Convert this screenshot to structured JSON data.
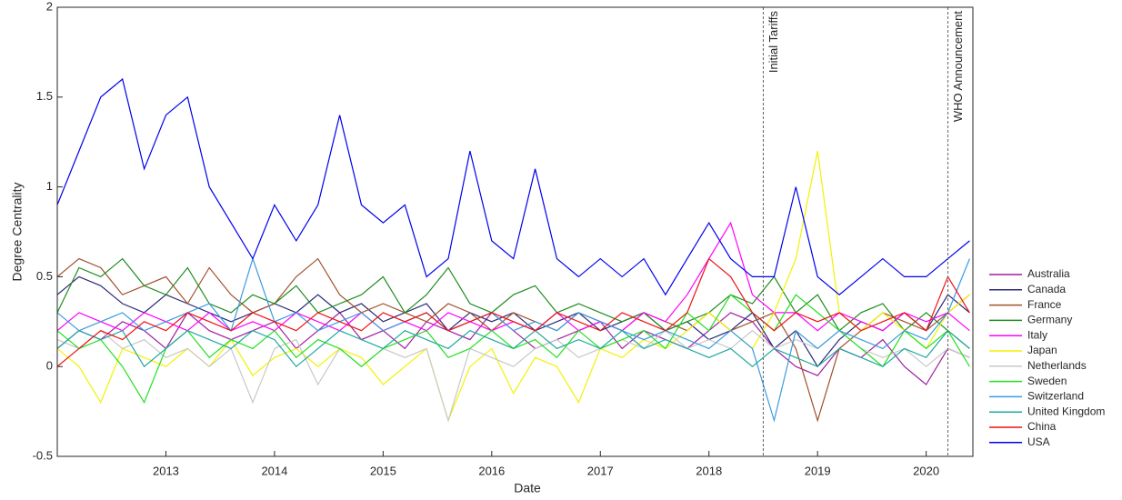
{
  "chart_data": {
    "type": "line",
    "xlabel": "Date",
    "ylabel": "Degree Centrality",
    "x": [
      2012.0,
      2012.2,
      2012.4,
      2012.6,
      2012.8,
      2013.0,
      2013.2,
      2013.4,
      2013.6,
      2013.8,
      2014.0,
      2014.2,
      2014.4,
      2014.6,
      2014.8,
      2015.0,
      2015.2,
      2015.4,
      2015.6,
      2015.8,
      2016.0,
      2016.2,
      2016.4,
      2016.6,
      2016.8,
      2017.0,
      2017.2,
      2017.4,
      2017.6,
      2017.8,
      2018.0,
      2018.2,
      2018.4,
      2018.6,
      2018.8,
      2019.0,
      2019.2,
      2019.4,
      2019.6,
      2019.8,
      2020.0,
      2020.2,
      2020.4
    ],
    "xlim": [
      2012.0,
      2020.43
    ],
    "xticks": [
      2013,
      2014,
      2015,
      2016,
      2017,
      2018,
      2019,
      2020
    ],
    "ylim": [
      -0.5,
      2
    ],
    "yticks": [
      -0.5,
      0,
      0.5,
      1,
      1.5,
      2
    ],
    "legend": "right",
    "annotations": [
      {
        "text": "Initial Tariffs",
        "x": 2018.5
      },
      {
        "text": "WHO Announcement",
        "x": 2020.2
      }
    ],
    "series": [
      {
        "name": "Australia",
        "color": "#a01fa0",
        "values": [
          0.1,
          0.2,
          0.15,
          0.25,
          0.2,
          0.1,
          0.3,
          0.2,
          0.15,
          0.2,
          0.25,
          0.1,
          0.2,
          0.3,
          0.15,
          0.2,
          0.1,
          0.25,
          0.2,
          0.15,
          0.3,
          0.2,
          0.1,
          0.15,
          0.2,
          0.25,
          0.1,
          0.2,
          0.15,
          0.1,
          0.2,
          0.3,
          0.25,
          0.1,
          0.0,
          -0.05,
          0.1,
          0.05,
          0.15,
          0.0,
          -0.1,
          0.1,
          0.05
        ]
      },
      {
        "name": "Canada",
        "color": "#2b2b7a",
        "values": [
          0.4,
          0.5,
          0.45,
          0.35,
          0.3,
          0.4,
          0.35,
          0.3,
          0.25,
          0.3,
          0.35,
          0.3,
          0.4,
          0.3,
          0.35,
          0.25,
          0.3,
          0.35,
          0.2,
          0.3,
          0.25,
          0.3,
          0.2,
          0.25,
          0.3,
          0.2,
          0.25,
          0.3,
          0.2,
          0.25,
          0.15,
          0.2,
          0.3,
          0.1,
          0.2,
          0.0,
          0.15,
          0.25,
          0.2,
          0.3,
          0.2,
          0.4,
          0.3
        ]
      },
      {
        "name": "France",
        "color": "#a0522d",
        "values": [
          0.5,
          0.6,
          0.55,
          0.4,
          0.45,
          0.5,
          0.35,
          0.55,
          0.4,
          0.3,
          0.35,
          0.5,
          0.6,
          0.4,
          0.3,
          0.35,
          0.3,
          0.25,
          0.35,
          0.3,
          0.2,
          0.3,
          0.25,
          0.2,
          0.3,
          0.25,
          0.2,
          0.3,
          0.25,
          0.2,
          0.3,
          0.2,
          0.25,
          0.3,
          0.1,
          -0.3,
          0.1,
          0.2,
          0.3,
          0.25,
          0.2,
          0.3,
          0.4
        ]
      },
      {
        "name": "Germany",
        "color": "#1f8b1f",
        "values": [
          0.3,
          0.55,
          0.5,
          0.6,
          0.45,
          0.4,
          0.55,
          0.35,
          0.3,
          0.4,
          0.35,
          0.45,
          0.3,
          0.35,
          0.4,
          0.5,
          0.3,
          0.4,
          0.55,
          0.35,
          0.3,
          0.4,
          0.45,
          0.3,
          0.35,
          0.3,
          0.25,
          0.3,
          0.2,
          0.25,
          0.3,
          0.4,
          0.35,
          0.5,
          0.3,
          0.4,
          0.2,
          0.3,
          0.35,
          0.2,
          0.3,
          0.2,
          0.1
        ]
      },
      {
        "name": "Italy",
        "color": "#ff00ff",
        "values": [
          0.2,
          0.3,
          0.25,
          0.2,
          0.3,
          0.25,
          0.2,
          0.3,
          0.2,
          0.25,
          0.2,
          0.3,
          0.25,
          0.2,
          0.3,
          0.2,
          0.25,
          0.2,
          0.3,
          0.25,
          0.2,
          0.25,
          0.2,
          0.3,
          0.2,
          0.25,
          0.2,
          0.3,
          0.25,
          0.4,
          0.6,
          0.8,
          0.4,
          0.3,
          0.3,
          0.2,
          0.3,
          0.25,
          0.2,
          0.3,
          0.25,
          0.3,
          0.2
        ]
      },
      {
        "name": "Japan",
        "color": "#f2f200",
        "values": [
          0.1,
          0.0,
          -0.2,
          0.1,
          0.05,
          0.0,
          0.1,
          0.0,
          0.15,
          -0.05,
          0.05,
          0.1,
          0.0,
          0.1,
          0.05,
          -0.1,
          0.0,
          0.1,
          -0.3,
          0.0,
          0.1,
          -0.15,
          0.05,
          0.0,
          -0.2,
          0.1,
          0.05,
          0.15,
          0.1,
          0.2,
          0.3,
          0.2,
          0.1,
          0.3,
          0.6,
          1.2,
          0.3,
          0.2,
          0.3,
          0.2,
          0.1,
          0.3,
          0.4
        ]
      },
      {
        "name": "Netherlands",
        "color": "#c8c8c8",
        "values": [
          0.15,
          0.1,
          0.2,
          0.1,
          0.15,
          0.05,
          0.1,
          0.0,
          0.1,
          -0.2,
          0.1,
          0.15,
          -0.1,
          0.1,
          0.0,
          0.1,
          0.05,
          0.1,
          -0.3,
          0.1,
          0.05,
          0.0,
          0.1,
          0.15,
          0.05,
          0.1,
          0.15,
          0.1,
          0.2,
          0.1,
          0.15,
          0.1,
          0.2,
          0.1,
          0.15,
          0.1,
          0.2,
          0.1,
          0.05,
          0.1,
          0.0,
          0.1,
          0.05
        ]
      },
      {
        "name": "Sweden",
        "color": "#22e022",
        "values": [
          0.2,
          0.1,
          0.15,
          0.0,
          -0.2,
          0.1,
          0.2,
          0.05,
          0.15,
          0.1,
          0.2,
          0.05,
          0.15,
          0.1,
          0.0,
          0.1,
          0.15,
          0.2,
          0.05,
          0.1,
          0.2,
          0.1,
          0.15,
          0.05,
          0.2,
          0.1,
          0.15,
          0.2,
          0.1,
          0.3,
          0.2,
          0.4,
          0.3,
          0.2,
          0.4,
          0.3,
          0.2,
          0.1,
          0.0,
          0.2,
          0.1,
          0.2,
          0.0
        ]
      },
      {
        "name": "Switzerland",
        "color": "#3b9be0",
        "values": [
          0.3,
          0.2,
          0.25,
          0.3,
          0.2,
          0.25,
          0.3,
          0.35,
          0.2,
          0.6,
          0.25,
          0.3,
          0.2,
          0.25,
          0.3,
          0.2,
          0.25,
          0.3,
          0.2,
          0.25,
          0.3,
          0.2,
          0.25,
          0.2,
          0.3,
          0.25,
          0.2,
          0.15,
          0.2,
          0.15,
          0.1,
          0.2,
          0.1,
          -0.3,
          0.2,
          0.1,
          0.2,
          0.15,
          0.1,
          0.2,
          0.15,
          0.3,
          0.6
        ]
      },
      {
        "name": "United Kingdom",
        "color": "#1fa8a0",
        "values": [
          0.1,
          0.2,
          0.15,
          0.2,
          0.0,
          0.1,
          0.2,
          0.15,
          0.1,
          0.2,
          0.15,
          0.0,
          0.1,
          0.2,
          0.15,
          0.1,
          0.2,
          0.15,
          0.1,
          0.2,
          0.15,
          0.1,
          0.2,
          0.1,
          0.15,
          0.1,
          0.2,
          0.1,
          0.15,
          0.1,
          0.05,
          0.1,
          0.0,
          0.1,
          0.05,
          0.0,
          0.1,
          0.05,
          0.0,
          0.1,
          0.05,
          0.2,
          0.1
        ]
      },
      {
        "name": "China",
        "color": "#ee1111",
        "values": [
          0.0,
          0.1,
          0.2,
          0.15,
          0.25,
          0.2,
          0.3,
          0.25,
          0.2,
          0.3,
          0.25,
          0.2,
          0.3,
          0.25,
          0.2,
          0.3,
          0.25,
          0.3,
          0.2,
          0.25,
          0.3,
          0.25,
          0.2,
          0.3,
          0.25,
          0.2,
          0.3,
          0.25,
          0.2,
          0.3,
          0.6,
          0.5,
          0.3,
          0.2,
          0.3,
          0.25,
          0.3,
          0.2,
          0.25,
          0.3,
          0.2,
          0.5,
          0.3
        ]
      },
      {
        "name": "USA",
        "color": "#0000ee",
        "values": [
          0.9,
          1.2,
          1.5,
          1.6,
          1.1,
          1.4,
          1.5,
          1.0,
          0.8,
          0.6,
          0.9,
          0.7,
          0.9,
          1.4,
          0.9,
          0.8,
          0.9,
          0.5,
          0.6,
          1.2,
          0.7,
          0.6,
          1.1,
          0.6,
          0.5,
          0.6,
          0.5,
          0.6,
          0.4,
          0.6,
          0.8,
          0.6,
          0.5,
          0.5,
          1.0,
          0.5,
          0.4,
          0.5,
          0.6,
          0.5,
          0.5,
          0.6,
          0.7
        ]
      }
    ]
  }
}
